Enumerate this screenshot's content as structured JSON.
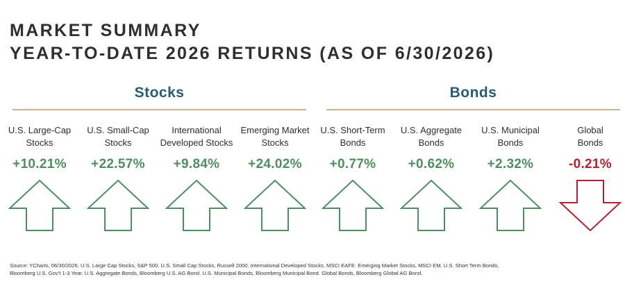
{
  "title": {
    "line1": "MARKET SUMMARY",
    "line2": "YEAR-TO-DATE 2026 RETURNS (AS OF 6/30/2026)"
  },
  "groups": {
    "stocks": "Stocks",
    "bonds": "Bonds"
  },
  "colors": {
    "positive": "#4f8f5f",
    "negative": "#b5222f",
    "group_heading": "#245d74",
    "rule": "#c9b48f"
  },
  "chart_data": {
    "type": "table",
    "categories": [
      {
        "group": "Stocks",
        "label_line1": "U.S. Large-Cap",
        "label_line2": "Stocks",
        "value": 10.21,
        "display": "+10.21%",
        "direction": "up"
      },
      {
        "group": "Stocks",
        "label_line1": "U.S. Small-Cap",
        "label_line2": "Stocks",
        "value": 22.57,
        "display": "+22.57%",
        "direction": "up"
      },
      {
        "group": "Stocks",
        "label_line1": "International",
        "label_line2": "Developed Stocks",
        "value": 9.84,
        "display": "+9.84%",
        "direction": "up"
      },
      {
        "group": "Stocks",
        "label_line1": "Emerging Market",
        "label_line2": "Stocks",
        "value": 24.02,
        "display": "+24.02%",
        "direction": "up"
      },
      {
        "group": "Bonds",
        "label_line1": "U.S. Short-Term",
        "label_line2": "Bonds",
        "value": 0.77,
        "display": "+0.77%",
        "direction": "up"
      },
      {
        "group": "Bonds",
        "label_line1": "U.S. Aggregate",
        "label_line2": "Bonds",
        "value": 0.62,
        "display": "+0.62%",
        "direction": "up"
      },
      {
        "group": "Bonds",
        "label_line1": "U.S. Municipal",
        "label_line2": "Bonds",
        "value": 2.32,
        "display": "+2.32%",
        "direction": "up"
      },
      {
        "group": "Bonds",
        "label_line1": "Global",
        "label_line2": "Bonds",
        "value": -0.21,
        "display": "-0.21%",
        "direction": "down"
      }
    ]
  },
  "source": {
    "line1": "Source: YCharts, 06/30/2026. U.S. Large Cap Stocks, S&P 500. U.S. Small Cap Stocks, Russell 2000. International Developed Stocks, MSCI EAFE. Emerging Market Stocks, MSCI EM. U.S. Short Term Bonds,",
    "line2": "Bloomberg U.S. Gov’t 1-3 Year. U.S. Aggregate Bonds, Bloomberg U.S. AG Bond. U.S. Municipal Bonds, Bloomberg Municipal Bond. Global Bonds, Bloomberg Global AG Bond."
  }
}
